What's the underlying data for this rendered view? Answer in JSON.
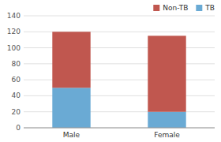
{
  "chart_data": {
    "type": "bar",
    "stacked": true,
    "categories": [
      "Male",
      "Female"
    ],
    "series": [
      {
        "name": "TB",
        "color": "#6aaad4",
        "values": [
          50,
          20
        ]
      },
      {
        "name": "Non-TB",
        "color": "#c0574f",
        "values": [
          70,
          95
        ]
      }
    ],
    "ylim": [
      0,
      140
    ],
    "yticks": [
      0,
      20,
      40,
      60,
      80,
      100,
      120,
      140
    ],
    "grid": true,
    "legend": "upper right"
  }
}
